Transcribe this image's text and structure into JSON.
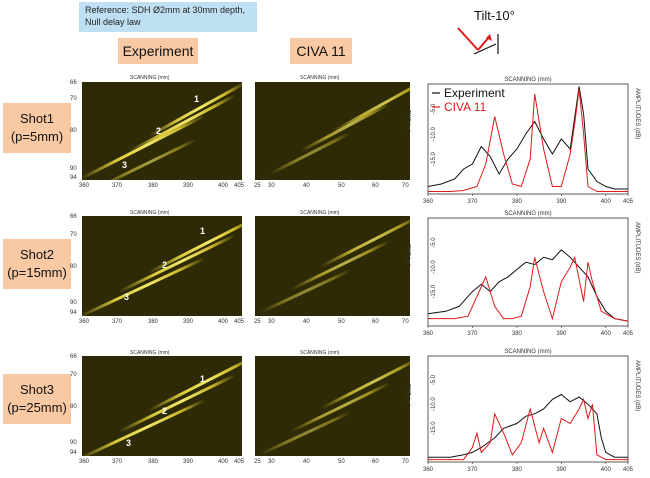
{
  "reference": "Reference: SDH Ø2mm at 30mm depth, Null delay law",
  "tilt_label": "Tilt-10°",
  "columns": {
    "experiment": "Experiment",
    "civa": "CIVA 11"
  },
  "rows": [
    {
      "name": "Shot1",
      "param": "(p=5mm)"
    },
    {
      "name": "Shot2",
      "param": "(p=15mm)"
    },
    {
      "name": "Shot3",
      "param": "(p=25mm)"
    }
  ],
  "bscan": {
    "x_label": "SCANNING (mm)",
    "y_label": "TIME (µs)",
    "exp_x_ticks": [
      "360",
      "370",
      "380",
      "390",
      "400",
      "405"
    ],
    "civa_x_ticks": [
      "25",
      "30",
      "40",
      "50",
      "60",
      "70"
    ],
    "y_ticks_1": [
      "66",
      "70",
      "80",
      "90",
      "94"
    ],
    "y_ticks_2": [
      "66",
      "70",
      "80",
      "90",
      "94"
    ],
    "y_ticks_3": [
      "66",
      "70",
      "80",
      "90",
      "94"
    ],
    "markers": [
      "1",
      "2",
      "3"
    ]
  },
  "colors": {
    "experiment": "#111111",
    "civa": "#e0191a",
    "bscan_bg": "#2e2a06",
    "streak": "#e8d94a"
  },
  "chart_data": [
    {
      "type": "line",
      "title": "SCANNING (mm)",
      "xlabel": "",
      "ylabel": "AMPLITUDES (dB)",
      "xlim": [
        360,
        405
      ],
      "ylim": [
        -22,
        0
      ],
      "x_ticks": [
        "360",
        "370",
        "380",
        "390",
        "400",
        "405"
      ],
      "y_ticks": [
        "-5.0",
        "-10.0",
        "-15.0"
      ],
      "legend": "top-left",
      "series": [
        {
          "name": "Experiment",
          "x": [
            360,
            363,
            366,
            368,
            370,
            372,
            374,
            376,
            378,
            380,
            382,
            384,
            386,
            388,
            390,
            392,
            394,
            395,
            396,
            398,
            400,
            402,
            405
          ],
          "y": [
            -20.5,
            -20,
            -19,
            -17,
            -16,
            -12.5,
            -14.5,
            -18,
            -15,
            -13,
            -10,
            -7.5,
            -11,
            -14,
            -11,
            -13,
            -0.5,
            -6,
            -17,
            -19.5,
            -20.5,
            -21,
            -21
          ]
        },
        {
          "name": "CIVA 11",
          "x": [
            360,
            365,
            368,
            371,
            373,
            375,
            377,
            379,
            381,
            383,
            384,
            386,
            388,
            390,
            392,
            393,
            394,
            395,
            396,
            398,
            400,
            405
          ],
          "y": [
            -21.5,
            -21.5,
            -21.3,
            -20.5,
            -16,
            -6.5,
            -14,
            -20,
            -20.5,
            -15,
            -2,
            -13,
            -20.5,
            -20.5,
            -14,
            -8,
            -1,
            -10,
            -20.5,
            -21.5,
            -21.5,
            -21.5
          ]
        }
      ]
    },
    {
      "type": "line",
      "title": "",
      "xlabel": "SCANNING (mm)",
      "ylabel": "AMPLITUDES (dB)",
      "xlim": [
        360,
        405
      ],
      "ylim": [
        -22,
        0
      ],
      "x_ticks": [
        "360",
        "370",
        "380",
        "390",
        "400",
        "405"
      ],
      "y_ticks": [
        "-5.0",
        "-10.0",
        "-15.0"
      ],
      "legend": "top-left",
      "series": [
        {
          "name": "Experiment",
          "x": [
            360,
            364,
            367,
            370,
            372,
            374,
            376,
            378,
            380,
            382,
            384,
            386,
            388,
            390,
            392,
            394,
            396,
            398,
            400,
            402,
            405
          ],
          "y": [
            -19.5,
            -19,
            -18,
            -15,
            -13.5,
            -15,
            -13,
            -12,
            -10.5,
            -9,
            -9.5,
            -8,
            -8.5,
            -6.5,
            -8,
            -10,
            -12,
            -16,
            -19,
            -20.5,
            -21
          ]
        },
        {
          "name": "CIVA 11",
          "x": [
            360,
            366,
            369,
            371,
            373,
            375,
            377,
            379,
            381,
            383,
            384,
            386,
            388,
            390,
            392,
            393,
            395,
            396,
            397,
            399,
            402,
            405
          ],
          "y": [
            -20.5,
            -20.5,
            -20,
            -16,
            -12,
            -18,
            -20.5,
            -20.5,
            -20,
            -14,
            -8,
            -15,
            -20.5,
            -13,
            -10,
            -8,
            -17,
            -9,
            -13,
            -19,
            -20.5,
            -21
          ]
        }
      ]
    },
    {
      "type": "line",
      "title": "",
      "xlabel": "SCANNING (mm)",
      "ylabel": "AMPLITUDES (dB)",
      "xlim": [
        360,
        405
      ],
      "ylim": [
        -22,
        0
      ],
      "x_ticks": [
        "360",
        "370",
        "380",
        "390",
        "400",
        "405"
      ],
      "y_ticks": [
        "-5.0",
        "-10.0",
        "-15.0"
      ],
      "legend": "top-left",
      "series": [
        {
          "name": "Experiment",
          "x": [
            360,
            365,
            368,
            370,
            372,
            375,
            377,
            380,
            382,
            384,
            386,
            388,
            390,
            392,
            394,
            396,
            398,
            399,
            400,
            402,
            405
          ],
          "y": [
            -21,
            -21,
            -20.5,
            -20,
            -19,
            -17,
            -15,
            -14,
            -12.5,
            -12,
            -11,
            -9,
            -8,
            -9.5,
            -8.5,
            -10,
            -12,
            -17,
            -20,
            -21,
            -21
          ]
        },
        {
          "name": "CIVA 11",
          "x": [
            360,
            368,
            370,
            371,
            372,
            374,
            375,
            377,
            379,
            381,
            383,
            385,
            386,
            388,
            390,
            392,
            394,
            395,
            396,
            397,
            398,
            400,
            405
          ],
          "y": [
            -21.5,
            -21.5,
            -19,
            -16,
            -20,
            -18,
            -12,
            -16,
            -20.5,
            -18,
            -11,
            -18,
            -15,
            -20,
            -13,
            -14,
            -11,
            -9,
            -13,
            -10,
            -20.5,
            -21.5,
            -21.5
          ]
        }
      ]
    }
  ]
}
